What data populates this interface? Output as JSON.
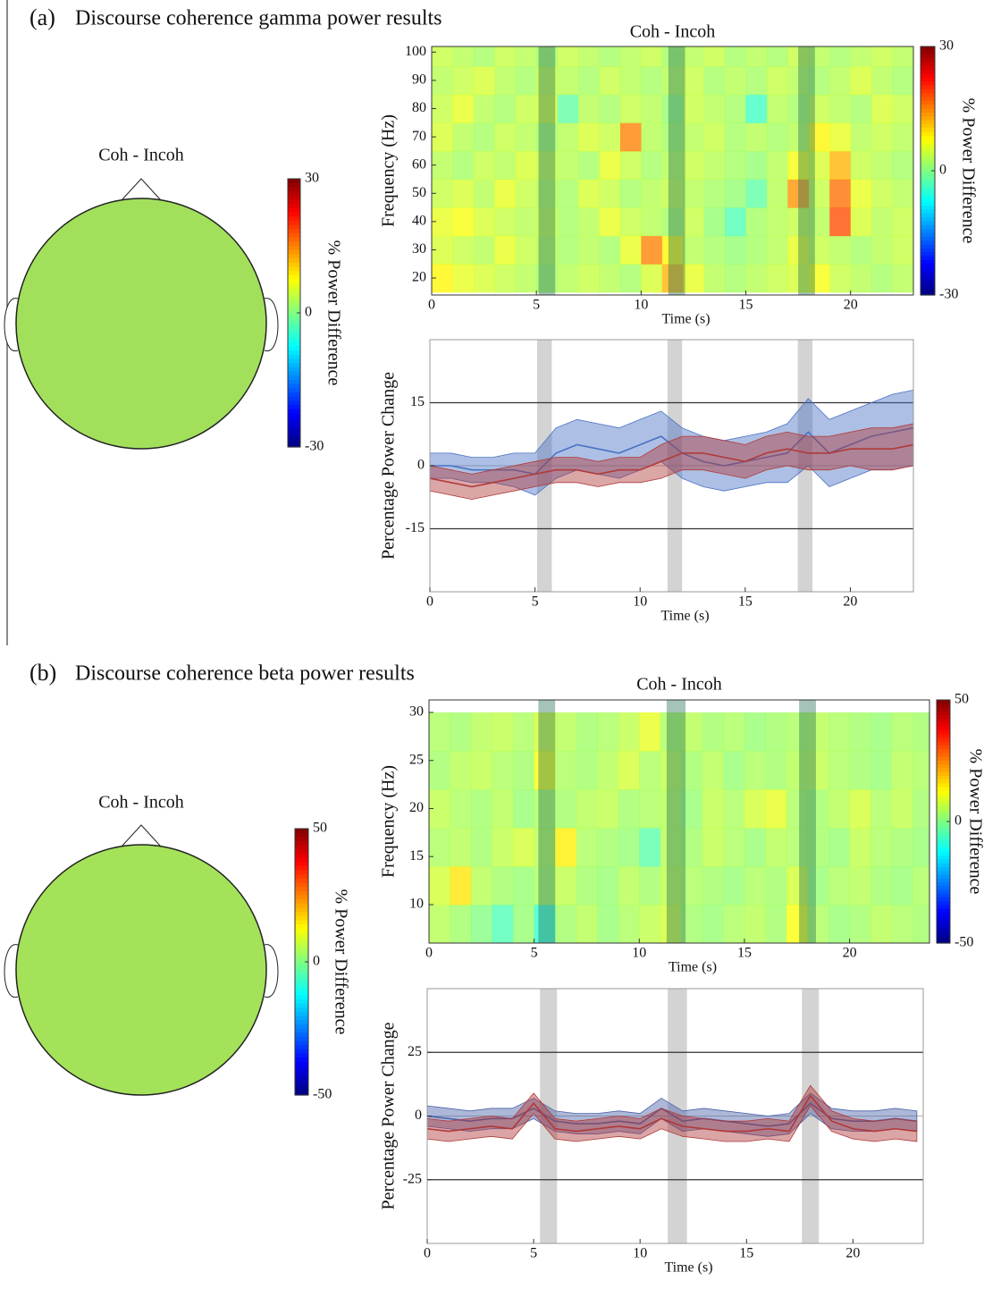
{
  "panels": [
    {
      "label": "(a)",
      "title": "Discourse coherence gamma power results"
    },
    {
      "label": "(b)",
      "title": "Discourse coherence beta power results"
    }
  ],
  "chart_data": [
    {
      "type": "topomap",
      "title": "Coh - Incoh",
      "color": "#a2e05c",
      "clim": [
        -30,
        30
      ],
      "cticks": [
        30,
        0,
        -30
      ],
      "clabel": "% Power Difference"
    },
    {
      "type": "heatmap",
      "title": "Coh - Incoh",
      "xlabel": "Time (s)",
      "ylabel": "Frequency (Hz)",
      "xlim": [
        0,
        23
      ],
      "ylim": [
        14,
        102
      ],
      "xticks": [
        0,
        5,
        10,
        15,
        20
      ],
      "yticks": [
        20,
        30,
        40,
        50,
        60,
        70,
        80,
        90,
        100
      ],
      "clim": [
        -30,
        30
      ],
      "cticks": [
        30,
        0,
        -30
      ],
      "clabel": "% Power Difference",
      "highlights": [
        [
          5.1,
          5.9
        ],
        [
          11.3,
          12.1
        ],
        [
          17.5,
          18.3
        ]
      ],
      "x": [
        0.5,
        1.5,
        2.5,
        3.5,
        4.5,
        5.5,
        6.5,
        7.5,
        8.5,
        9.5,
        10.5,
        11.5,
        12.5,
        13.5,
        14.5,
        15.5,
        16.5,
        17.5,
        18.5,
        19.5,
        20.5,
        21.5,
        22.5
      ],
      "y": [
        20,
        30,
        40,
        50,
        60,
        70,
        80,
        90,
        100
      ],
      "z": [
        [
          8,
          6,
          5,
          4,
          3,
          2,
          3,
          4,
          3,
          2,
          5,
          12,
          6,
          3,
          2,
          3,
          4,
          5,
          7,
          4,
          3,
          2,
          3
        ],
        [
          5,
          4,
          3,
          6,
          4,
          3,
          2,
          3,
          2,
          6,
          15,
          8,
          3,
          2,
          1,
          2,
          3,
          6,
          4,
          3,
          2,
          3,
          4
        ],
        [
          6,
          7,
          5,
          4,
          3,
          4,
          2,
          3,
          6,
          4,
          3,
          2,
          4,
          1,
          -3,
          2,
          3,
          4,
          3,
          18,
          5,
          3,
          4
        ],
        [
          4,
          5,
          3,
          6,
          4,
          3,
          2,
          5,
          4,
          2,
          3,
          4,
          3,
          2,
          1,
          -2,
          3,
          14,
          4,
          16,
          6,
          4,
          3
        ],
        [
          3,
          2,
          4,
          3,
          5,
          4,
          3,
          2,
          6,
          4,
          2,
          3,
          4,
          3,
          2,
          1,
          3,
          7,
          5,
          12,
          4,
          3,
          2
        ],
        [
          5,
          3,
          2,
          4,
          3,
          2,
          3,
          5,
          4,
          15,
          3,
          2,
          3,
          4,
          2,
          3,
          2,
          3,
          8,
          6,
          3,
          4,
          3
        ],
        [
          4,
          6,
          3,
          2,
          4,
          5,
          -2,
          3,
          2,
          4,
          3,
          1,
          4,
          3,
          2,
          -4,
          3,
          2,
          4,
          3,
          2,
          5,
          4
        ],
        [
          3,
          4,
          5,
          3,
          2,
          4,
          3,
          2,
          4,
          3,
          2,
          3,
          4,
          2,
          3,
          2,
          4,
          3,
          2,
          3,
          5,
          3,
          2
        ],
        [
          4,
          3,
          2,
          4,
          3,
          2,
          4,
          3,
          2,
          3,
          4,
          2,
          3,
          4,
          2,
          3,
          2,
          4,
          3,
          2,
          3,
          4,
          3
        ]
      ]
    },
    {
      "type": "line",
      "xlabel": "Time (s)",
      "ylabel": "Percentage Power Change",
      "xlim": [
        0,
        23
      ],
      "ylim": [
        -30,
        30
      ],
      "xticks": [
        0,
        5,
        10,
        15,
        20
      ],
      "yticks": [
        -15,
        0,
        15
      ],
      "reference_lines": [
        15,
        -15
      ],
      "highlights": [
        [
          5.1,
          5.8
        ],
        [
          11.3,
          12
        ],
        [
          17.5,
          18.2
        ]
      ],
      "x": [
        0,
        1,
        2,
        3,
        4,
        5,
        6,
        7,
        8,
        9,
        10,
        11,
        12,
        13,
        14,
        15,
        16,
        17,
        18,
        19,
        20,
        21,
        22,
        23
      ],
      "series": [
        {
          "color": "#4a72c4",
          "values": [
            0,
            0,
            -1,
            -1,
            -1,
            -2,
            3,
            5,
            4,
            3,
            5,
            7,
            3,
            1,
            0,
            1,
            2,
            3,
            8,
            3,
            5,
            7,
            8,
            9
          ],
          "errors": [
            3,
            3,
            3,
            3,
            4,
            5,
            6,
            6,
            6,
            6,
            6,
            6,
            6,
            6,
            6,
            6,
            6,
            7,
            8,
            8,
            8,
            8,
            9,
            9
          ]
        },
        {
          "color": "#b03a3a",
          "values": [
            -3,
            -4,
            -5,
            -4,
            -3,
            -2,
            -1,
            -1,
            -2,
            -1,
            -1,
            1,
            3,
            3,
            2,
            1,
            3,
            4,
            3,
            3,
            4,
            4,
            4,
            5
          ],
          "errors": [
            3,
            3,
            3,
            3,
            3,
            3,
            3,
            3,
            3,
            3,
            3,
            4,
            4,
            4,
            4,
            4,
            4,
            4,
            4,
            4,
            4,
            5,
            5,
            5
          ]
        }
      ]
    },
    {
      "type": "topomap",
      "title": "Coh - Incoh",
      "color": "#a4e25a",
      "clim": [
        -50,
        50
      ],
      "cticks": [
        50,
        0,
        -50
      ],
      "clabel": "% Power Difference"
    },
    {
      "type": "heatmap",
      "title": "Coh - Incoh",
      "xlabel": "Time (s)",
      "ylabel": "Frequency (Hz)",
      "xlim": [
        0,
        23.8
      ],
      "ylim": [
        6,
        31.3
      ],
      "xticks": [
        0,
        5,
        10,
        15,
        20
      ],
      "yticks": [
        10,
        15,
        20,
        25,
        30
      ],
      "clim": [
        -50,
        50
      ],
      "cticks": [
        50,
        0,
        -50
      ],
      "clabel": "% Power Difference",
      "highlights": [
        [
          5.2,
          6
        ],
        [
          11.3,
          12.2
        ],
        [
          17.6,
          18.4
        ]
      ],
      "x": [
        0.5,
        1.5,
        2.5,
        3.5,
        4.5,
        5.5,
        6.5,
        7.5,
        8.5,
        9.5,
        10.5,
        11.5,
        12.5,
        13.5,
        14.5,
        15.5,
        16.5,
        17.5,
        18.5,
        19.5,
        20.5,
        21.5,
        22.5,
        23.5
      ],
      "y": [
        8,
        12,
        16,
        20,
        24,
        28
      ],
      "z": [
        [
          5,
          3,
          0,
          -5,
          2,
          -8,
          3,
          5,
          2,
          4,
          6,
          8,
          3,
          2,
          4,
          5,
          3,
          12,
          4,
          2,
          3,
          5,
          4,
          3
        ],
        [
          8,
          15,
          5,
          3,
          2,
          4,
          6,
          3,
          2,
          5,
          3,
          6,
          4,
          3,
          2,
          4,
          3,
          8,
          2,
          4,
          5,
          3,
          2,
          4
        ],
        [
          4,
          5,
          3,
          6,
          8,
          5,
          14,
          4,
          3,
          2,
          -4,
          5,
          3,
          6,
          4,
          2,
          5,
          4,
          3,
          2,
          6,
          4,
          3,
          2
        ],
        [
          6,
          4,
          3,
          5,
          2,
          4,
          3,
          5,
          6,
          3,
          4,
          5,
          2,
          6,
          4,
          8,
          10,
          4,
          3,
          5,
          8,
          4,
          6,
          3
        ],
        [
          3,
          5,
          6,
          4,
          3,
          12,
          4,
          3,
          5,
          8,
          4,
          6,
          3,
          5,
          2,
          4,
          3,
          5,
          6,
          4,
          3,
          2,
          5,
          4
        ],
        [
          4,
          3,
          5,
          6,
          4,
          8,
          5,
          3,
          4,
          6,
          10,
          4,
          5,
          3,
          4,
          2,
          3,
          4,
          5,
          4,
          3,
          2,
          4,
          3
        ]
      ]
    },
    {
      "type": "line",
      "xlabel": "Time (s)",
      "ylabel": "Percentage Power Change",
      "xlim": [
        0,
        23.3
      ],
      "ylim": [
        -50,
        50
      ],
      "xticks": [
        0,
        5,
        10,
        15,
        20
      ],
      "yticks": [
        -25,
        0,
        25
      ],
      "reference_lines": [
        25,
        -25
      ],
      "highlights": [
        [
          5.3,
          6.1
        ],
        [
          11.3,
          12.2
        ],
        [
          17.6,
          18.4
        ]
      ],
      "x": [
        0,
        1,
        2,
        3,
        4,
        5,
        6,
        7,
        8,
        9,
        10,
        11,
        12,
        13,
        14,
        15,
        16,
        17,
        18,
        19,
        20,
        21,
        22,
        23
      ],
      "series": [
        {
          "color": "#4a62a8",
          "values": [
            0,
            -1,
            -2,
            -1,
            -1,
            3,
            -2,
            -3,
            -3,
            -2,
            -3,
            3,
            -2,
            -1,
            -2,
            -3,
            -4,
            -3,
            5,
            -1,
            -2,
            -2,
            -1,
            -2
          ],
          "errors": [
            4,
            4,
            4,
            4,
            4,
            4,
            4,
            4,
            4,
            4,
            4,
            4,
            4,
            4,
            4,
            4,
            4,
            4,
            4,
            4,
            4,
            4,
            4,
            4
          ]
        },
        {
          "color": "#b03838",
          "values": [
            -5,
            -6,
            -5,
            -4,
            -5,
            5,
            -5,
            -6,
            -5,
            -4,
            -5,
            -1,
            -4,
            -5,
            -6,
            -6,
            -5,
            -6,
            8,
            -2,
            -5,
            -6,
            -5,
            -6
          ],
          "errors": [
            4,
            4,
            4,
            4,
            4,
            4,
            4,
            4,
            4,
            4,
            4,
            4,
            4,
            4,
            4,
            4,
            4,
            4,
            4,
            4,
            4,
            4,
            4,
            4
          ]
        }
      ]
    }
  ]
}
